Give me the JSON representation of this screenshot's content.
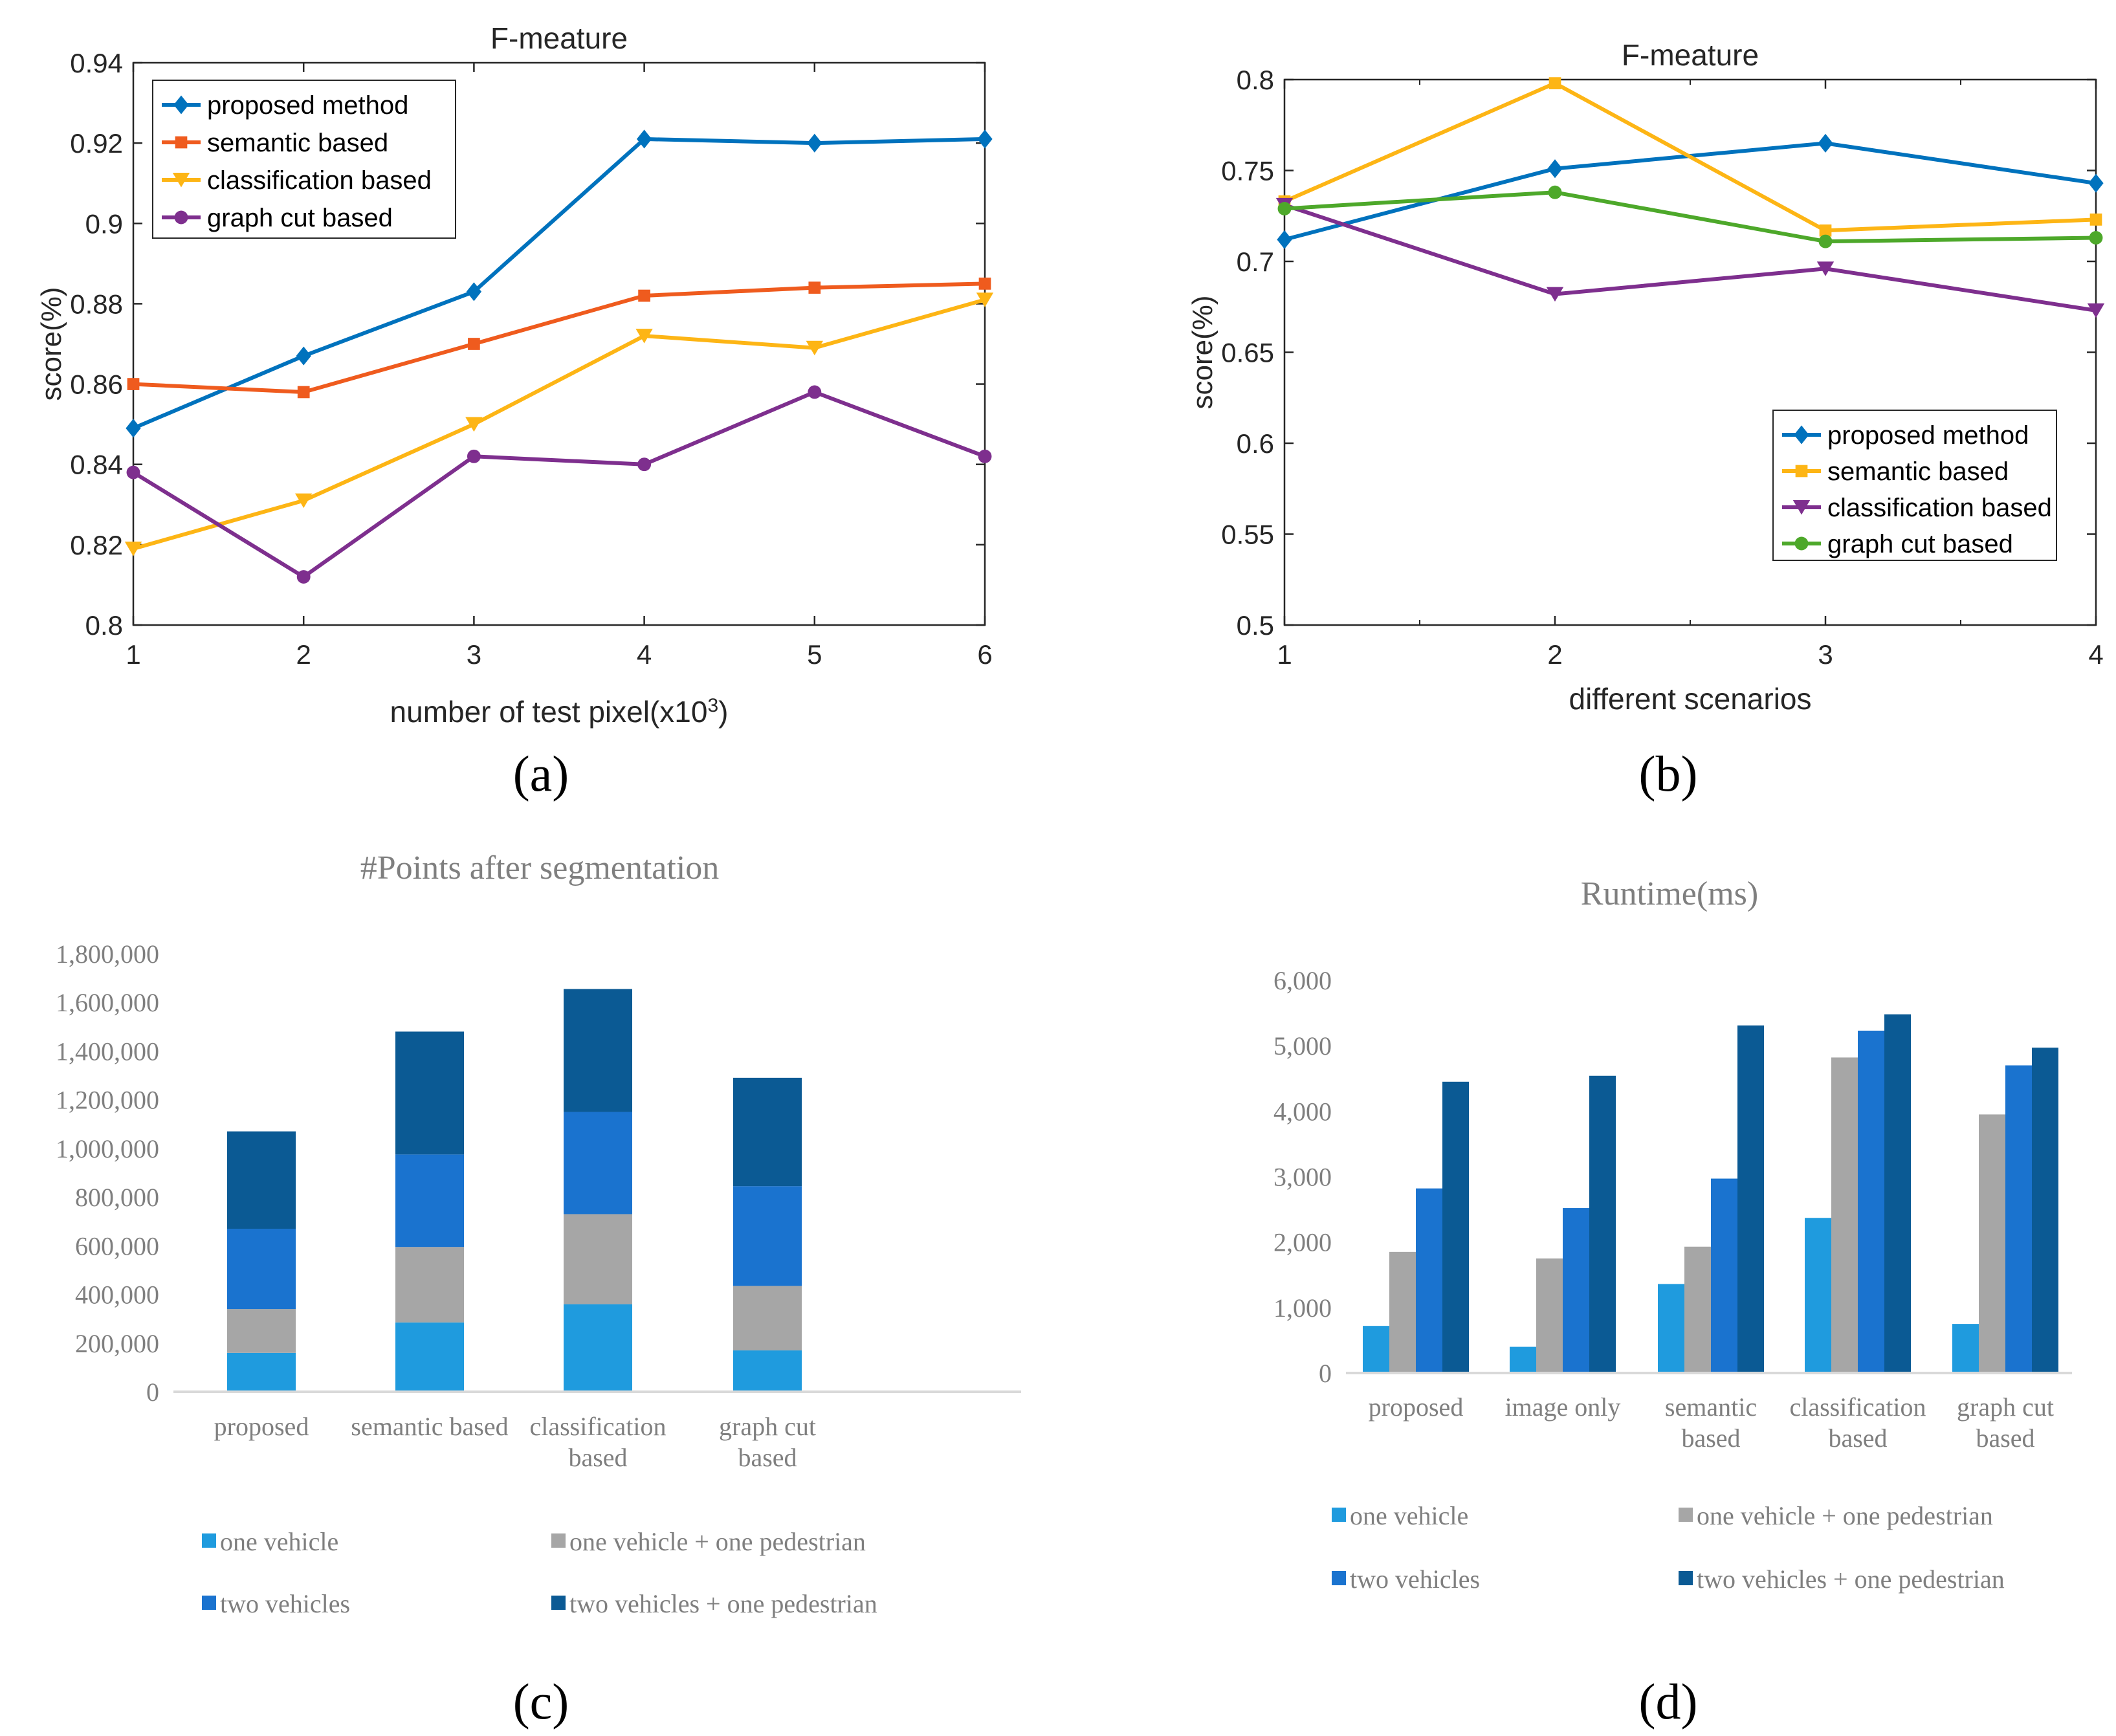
{
  "chart_data": [
    {
      "id": "a",
      "type": "line",
      "panel_label": "a",
      "title": "F-meature",
      "xlabel": "number of test pixel(x10",
      "xlabel_sup": "3",
      "xlabel_suffix": ")",
      "ylabel": "score(%)",
      "x": [
        1,
        2,
        3,
        4,
        5,
        6
      ],
      "xlim": [
        1,
        6
      ],
      "ylim": [
        0.8,
        0.94
      ],
      "xticks": [
        1,
        2,
        3,
        4,
        5,
        6
      ],
      "yticks": [
        "0.8",
        "0.82",
        "0.84",
        "0.86",
        "0.88",
        "0.9",
        "0.92",
        "0.94"
      ],
      "legend_position": "top-left",
      "series": [
        {
          "name": "proposed method",
          "color": "#0072BD",
          "marker": "diamond",
          "values": [
            0.849,
            0.867,
            0.883,
            0.921,
            0.92,
            0.921
          ]
        },
        {
          "name": "semantic based",
          "color": "#EF5B1E",
          "marker": "square",
          "values": [
            0.86,
            0.858,
            0.87,
            0.882,
            0.884,
            0.885
          ]
        },
        {
          "name": "classification based",
          "color": "#FDB515",
          "marker": "triangle-down",
          "values": [
            0.819,
            0.831,
            0.85,
            0.872,
            0.869,
            0.881
          ]
        },
        {
          "name": "graph cut based",
          "color": "#7E2F8E",
          "marker": "circle",
          "values": [
            0.838,
            0.812,
            0.842,
            0.84,
            0.858,
            0.842
          ]
        }
      ]
    },
    {
      "id": "b",
      "type": "line",
      "panel_label": "b",
      "title": "F-meature",
      "xlabel": "different scenarios",
      "ylabel": "score(%)",
      "x": [
        1,
        2,
        3,
        4
      ],
      "xlim": [
        1,
        4
      ],
      "ylim": [
        0.5,
        0.8
      ],
      "xticks": [
        1,
        2,
        3,
        4
      ],
      "yticks": [
        "0.5",
        "0.55",
        "0.6",
        "0.65",
        "0.7",
        "0.75",
        "0.8"
      ],
      "legend_position": "bottom-right",
      "series": [
        {
          "name": "proposed method",
          "color": "#0072BD",
          "marker": "diamond",
          "values": [
            0.712,
            0.751,
            0.765,
            0.743
          ]
        },
        {
          "name": "semantic based",
          "color": "#FDB515",
          "marker": "square",
          "values": [
            0.733,
            0.798,
            0.717,
            0.723
          ]
        },
        {
          "name": "classification based",
          "color": "#7E2F8E",
          "marker": "triangle-down",
          "values": [
            0.731,
            0.682,
            0.696,
            0.673
          ]
        },
        {
          "name": "graph cut based",
          "color": "#4DA82A",
          "marker": "circle",
          "values": [
            0.729,
            0.738,
            0.711,
            0.713
          ]
        }
      ]
    },
    {
      "id": "c",
      "type": "bar",
      "stacked": true,
      "panel_label": "c",
      "title": "#Points after segmentation",
      "categories": [
        [
          "proposed"
        ],
        [
          "semantic based"
        ],
        [
          "classification",
          "based"
        ],
        [
          "graph cut",
          "based"
        ]
      ],
      "ylim": [
        0,
        1800000
      ],
      "yticks": [
        "0",
        "200,000",
        "400,000",
        "600,000",
        "800,000",
        "1,000,000",
        "1,200,000",
        "1,400,000",
        "1,600,000",
        "1,800,000"
      ],
      "legend_position": "bottom",
      "series": [
        {
          "name": "one vehicle",
          "color": "#1F9BDE",
          "values": [
            160000,
            285000,
            360000,
            170000
          ]
        },
        {
          "name": "one vehicle + one pedestrian",
          "color": "#A6A6A6",
          "values": [
            180000,
            310000,
            370000,
            265000
          ]
        },
        {
          "name": "two vehicles",
          "color": "#1A73CF",
          "values": [
            330000,
            380000,
            420000,
            410000
          ]
        },
        {
          "name": "two vehicles + one pedestrian",
          "color": "#0B5A94",
          "values": [
            400000,
            505000,
            505000,
            445000
          ]
        }
      ]
    },
    {
      "id": "d",
      "type": "bar",
      "panel_label": "d",
      "title": "Runtime(ms)",
      "categories": [
        [
          "proposed"
        ],
        [
          "image only"
        ],
        [
          "semantic",
          "based"
        ],
        [
          "classification",
          "based"
        ],
        [
          "graph cut",
          "based"
        ]
      ],
      "ylim": [
        0,
        6000
      ],
      "yticks": [
        "0",
        "1,000",
        "2,000",
        "3,000",
        "4,000",
        "5,000",
        "6,000"
      ],
      "legend_position": "bottom",
      "series": [
        {
          "name": "one vehicle",
          "color": "#1F9BDE",
          "values": [
            720,
            400,
            1360,
            2370,
            750
          ]
        },
        {
          "name": "one vehicle + one pedestrian",
          "color": "#A6A6A6",
          "values": [
            1850,
            1750,
            1930,
            4820,
            3950
          ]
        },
        {
          "name": "two vehicles",
          "color": "#1A73CF",
          "values": [
            2820,
            2520,
            2970,
            5230,
            4700
          ]
        },
        {
          "name": "two vehicles + one pedestrian",
          "color": "#0B5A94",
          "values": [
            4450,
            4540,
            5310,
            5480,
            4970
          ]
        }
      ]
    }
  ]
}
